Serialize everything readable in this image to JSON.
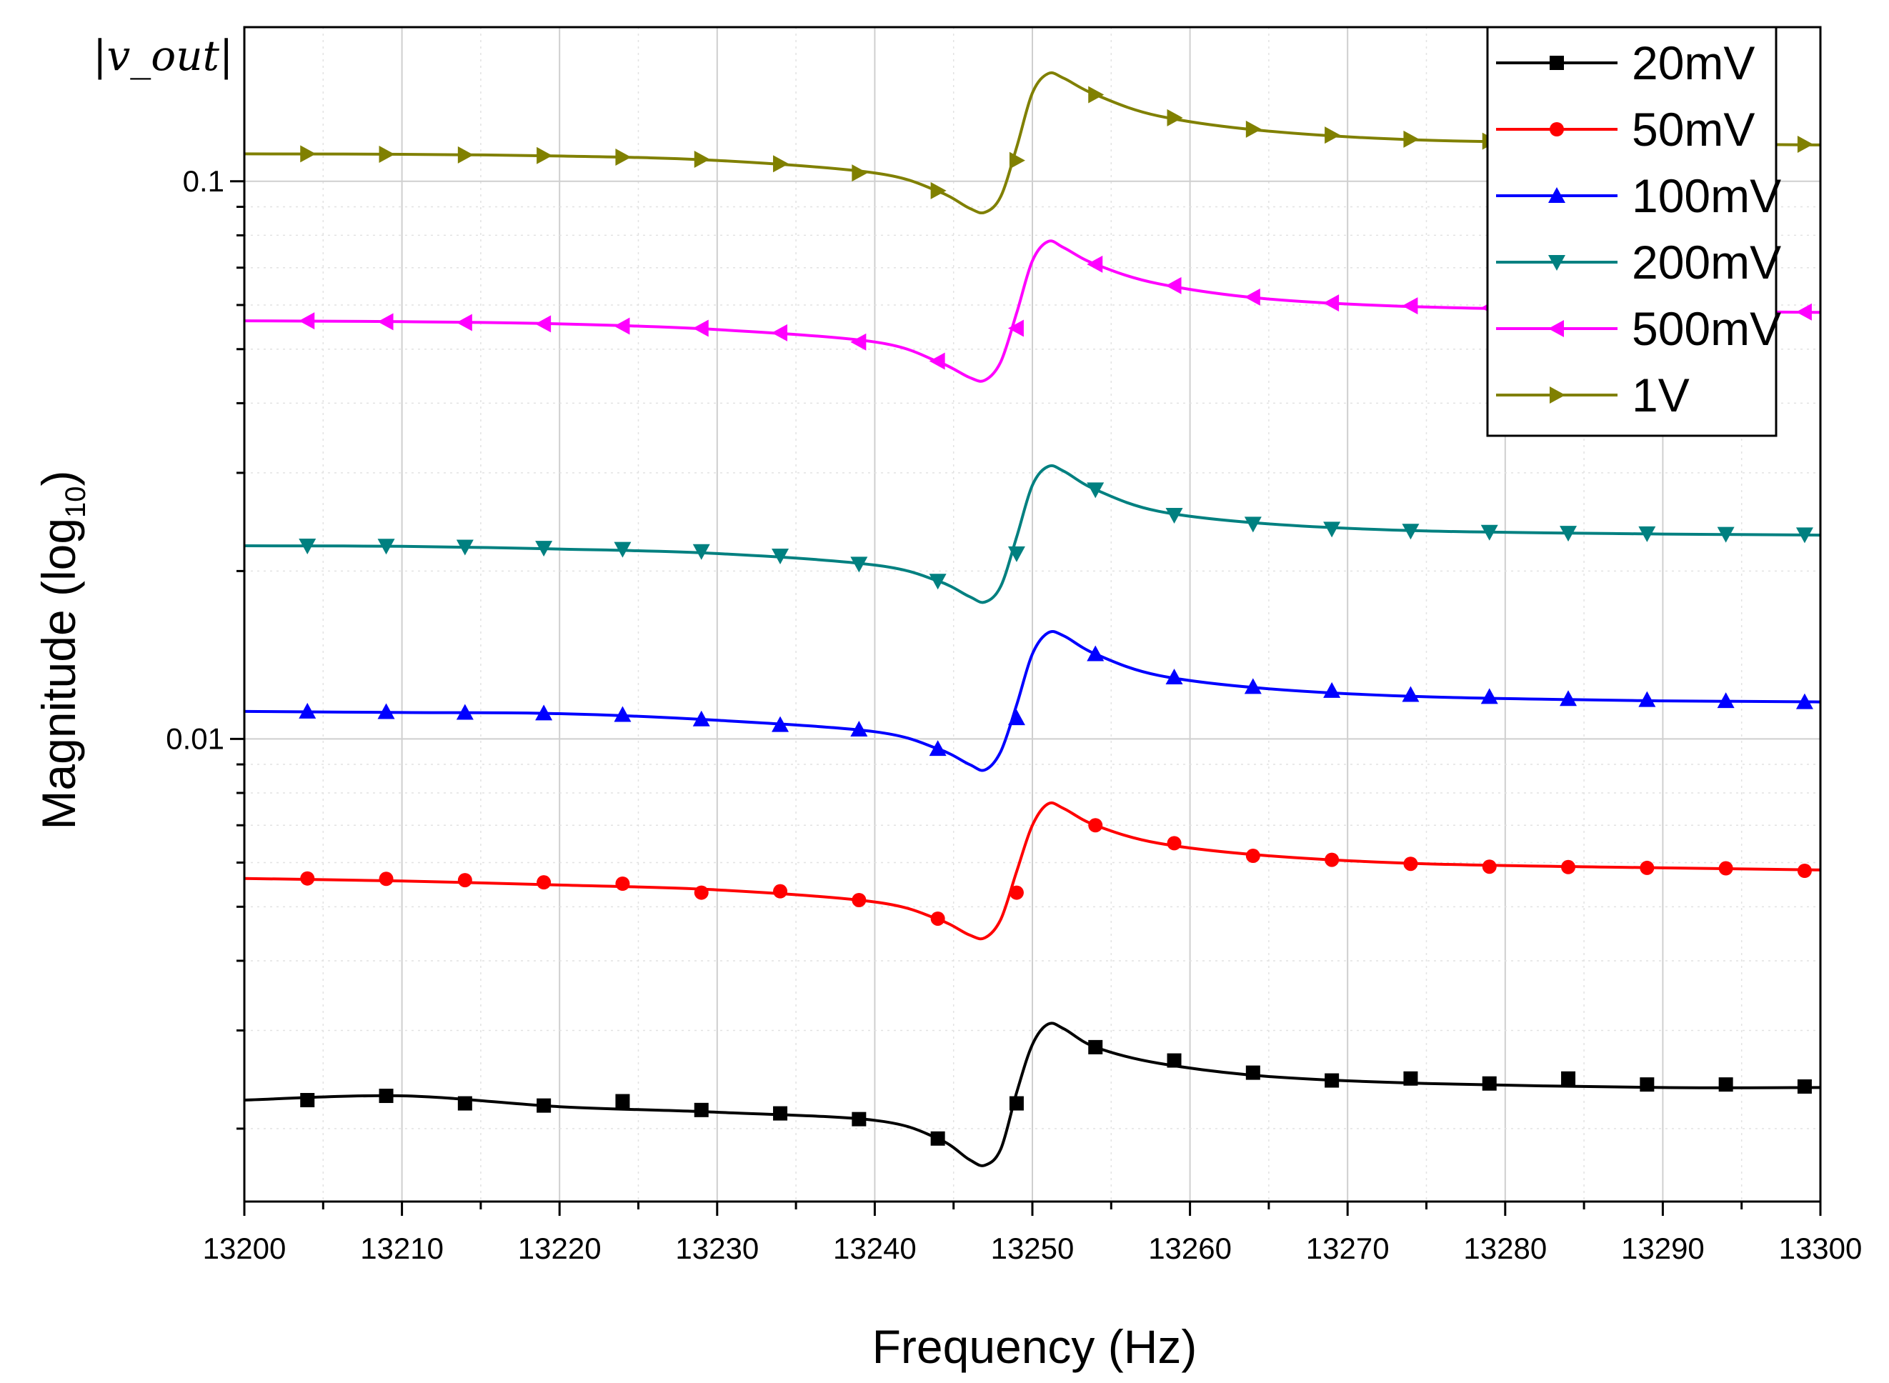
{
  "chart_data": {
    "type": "line",
    "title": "",
    "corner_label": "|v_out|",
    "xlabel": "Frequency (Hz)",
    "ylabel": "Magnitude (log",
    "ylabel_sub": "10",
    "ylabel_close": ")",
    "xlim": [
      13200,
      13300
    ],
    "ylim": [
      0.00148,
      0.189
    ],
    "y_scale": "log",
    "grid": true,
    "legend_position": "top-right",
    "x_ticks": [
      13200,
      13210,
      13220,
      13230,
      13240,
      13250,
      13260,
      13270,
      13280,
      13290,
      13300
    ],
    "x_tick_labels": [
      "13200",
      "13210",
      "13220",
      "13230",
      "13240",
      "13250",
      "13260",
      "13270",
      "13280",
      "13290",
      "13300"
    ],
    "y_ticks": [
      0.01,
      0.1
    ],
    "y_tick_labels": [
      "0.01",
      "0.1"
    ],
    "curve_x": [
      13200,
      13210,
      13220,
      13230,
      13240,
      13244,
      13246,
      13247,
      13248,
      13249,
      13250,
      13251,
      13252,
      13254,
      13258,
      13265,
      13275,
      13290,
      13300
    ],
    "series": [
      {
        "name": "20mV",
        "color": "#000000",
        "marker": "square",
        "curve_y": [
          0.00225,
          0.00229,
          0.00219,
          0.00214,
          0.00207,
          0.00192,
          0.00176,
          0.00172,
          0.00184,
          0.00232,
          0.00283,
          0.00308,
          0.00302,
          0.0028,
          0.00262,
          0.00248,
          0.00241,
          0.00237,
          0.00237
        ],
        "marker_x": [
          13204,
          13209,
          13214,
          13219,
          13224,
          13229,
          13234,
          13239,
          13244,
          13249,
          13254,
          13259,
          13264,
          13269,
          13274,
          13279,
          13284,
          13289,
          13294,
          13299
        ],
        "marker_y": [
          0.00225,
          0.00229,
          0.00222,
          0.0022,
          0.00224,
          0.00216,
          0.00213,
          0.00208,
          0.00192,
          0.00222,
          0.0028,
          0.00265,
          0.00252,
          0.00244,
          0.00246,
          0.00241,
          0.00246,
          0.0024,
          0.0024,
          0.00238
        ]
      },
      {
        "name": "50mV",
        "color": "#ff0000",
        "marker": "circle",
        "curve_y": [
          0.00562,
          0.00556,
          0.00547,
          0.00536,
          0.0051,
          0.00475,
          0.00445,
          0.0044,
          0.00475,
          0.00578,
          0.007,
          0.00765,
          0.0075,
          0.007,
          0.0065,
          0.00617,
          0.00597,
          0.00587,
          0.00582
        ],
        "marker_x": [
          13204,
          13209,
          13214,
          13219,
          13224,
          13229,
          13234,
          13239,
          13244,
          13249,
          13254,
          13259,
          13264,
          13269,
          13274,
          13279,
          13284,
          13289,
          13294,
          13299
        ],
        "marker_y": [
          0.00562,
          0.00561,
          0.00558,
          0.00553,
          0.0055,
          0.0053,
          0.00533,
          0.00514,
          0.00476,
          0.0053,
          0.007,
          0.0065,
          0.00617,
          0.00607,
          0.00597,
          0.0059,
          0.00589,
          0.00587,
          0.00586,
          0.0058
        ]
      },
      {
        "name": "100mV",
        "color": "#0000ff",
        "marker": "triangle-up",
        "curve_y": [
          0.0112,
          0.01115,
          0.0111,
          0.0108,
          0.0103,
          0.0096,
          0.009,
          0.0088,
          0.0095,
          0.0115,
          0.0142,
          0.0155,
          0.0153,
          0.0142,
          0.013,
          0.0123,
          0.0119,
          0.0117,
          0.01165
        ],
        "marker_x": [
          13204,
          13209,
          13214,
          13219,
          13224,
          13229,
          13234,
          13239,
          13244,
          13249,
          13254,
          13259,
          13264,
          13269,
          13274,
          13279,
          13284,
          13289,
          13294,
          13299
        ],
        "marker_y": [
          0.0112,
          0.01118,
          0.01115,
          0.01112,
          0.01105,
          0.01085,
          0.0106,
          0.0104,
          0.0096,
          0.0109,
          0.0142,
          0.0129,
          0.0124,
          0.0122,
          0.012,
          0.0119,
          0.0118,
          0.01175,
          0.0117,
          0.01165
        ]
      },
      {
        "name": "200mV",
        "color": "#008080",
        "marker": "triangle-down",
        "curve_y": [
          0.0222,
          0.02215,
          0.0219,
          0.0215,
          0.0205,
          0.0192,
          0.018,
          0.0176,
          0.0188,
          0.023,
          0.0285,
          0.0308,
          0.0302,
          0.028,
          0.0256,
          0.0243,
          0.0236,
          0.0233,
          0.0232
        ],
        "marker_x": [
          13204,
          13209,
          13214,
          13219,
          13224,
          13229,
          13234,
          13239,
          13244,
          13249,
          13254,
          13259,
          13264,
          13269,
          13274,
          13279,
          13284,
          13289,
          13294,
          13299
        ],
        "marker_y": [
          0.0222,
          0.02218,
          0.0221,
          0.022,
          0.0219,
          0.0217,
          0.0213,
          0.0206,
          0.0192,
          0.0215,
          0.028,
          0.0252,
          0.0243,
          0.0238,
          0.0236,
          0.0235,
          0.0234,
          0.02335,
          0.0233,
          0.02325
        ]
      },
      {
        "name": "500mV",
        "color": "#ff00ff",
        "marker": "triangle-left",
        "curve_y": [
          0.0562,
          0.056,
          0.0555,
          0.0542,
          0.0515,
          0.0475,
          0.0445,
          0.044,
          0.0475,
          0.058,
          0.072,
          0.078,
          0.076,
          0.071,
          0.0655,
          0.0615,
          0.0595,
          0.0585,
          0.0582
        ],
        "marker_x": [
          13204,
          13209,
          13214,
          13219,
          13224,
          13229,
          13234,
          13239,
          13244,
          13249,
          13254,
          13259,
          13264,
          13269,
          13274,
          13279,
          13284,
          13289,
          13294,
          13299
        ],
        "marker_y": [
          0.0562,
          0.056,
          0.0558,
          0.0555,
          0.055,
          0.0545,
          0.0535,
          0.0515,
          0.0476,
          0.0545,
          0.071,
          0.065,
          0.062,
          0.0605,
          0.0598,
          0.0593,
          0.059,
          0.0588,
          0.0585,
          0.0583
        ]
      },
      {
        "name": "1V",
        "color": "#808000",
        "marker": "triangle-right",
        "curve_y": [
          0.112,
          0.1118,
          0.111,
          0.109,
          0.1035,
          0.096,
          0.0895,
          0.088,
          0.094,
          0.115,
          0.144,
          0.156,
          0.153,
          0.143,
          0.131,
          0.123,
          0.1185,
          0.1168,
          0.1162
        ],
        "marker_x": [
          13204,
          13209,
          13214,
          13219,
          13224,
          13229,
          13234,
          13239,
          13244,
          13249,
          13254,
          13259,
          13264,
          13269,
          13274,
          13279,
          13284,
          13289,
          13294,
          13299
        ],
        "marker_y": [
          0.112,
          0.1118,
          0.1115,
          0.1112,
          0.1105,
          0.1095,
          0.1075,
          0.1035,
          0.0962,
          0.109,
          0.143,
          0.13,
          0.124,
          0.121,
          0.119,
          0.118,
          0.1175,
          0.117,
          0.1168,
          0.1165
        ]
      }
    ]
  }
}
